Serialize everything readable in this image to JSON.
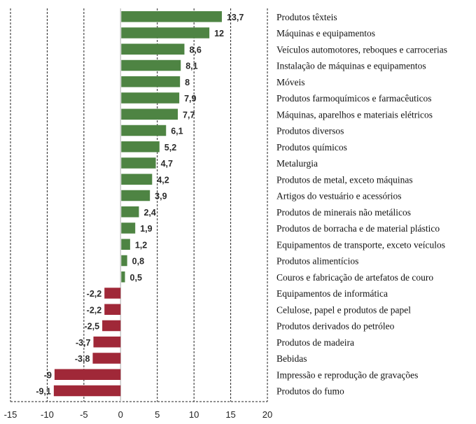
{
  "chart_data": {
    "type": "bar",
    "orientation": "horizontal",
    "title": "",
    "xlabel": "",
    "ylabel": "",
    "xlim": [
      -15,
      20
    ],
    "xticks": [
      -15,
      -10,
      -5,
      0,
      5,
      10,
      15,
      20
    ],
    "xtick_labels": [
      "-15",
      "-10",
      "-5",
      "0",
      "5",
      "10",
      "15",
      "20"
    ],
    "grid": "vertical dashed",
    "legend": "none",
    "category_label_position": "right",
    "colors": {
      "positive": "#4e8443",
      "negative": "#a02838"
    },
    "categories": [
      "Produtos têxteis",
      "Máquinas e equipamentos",
      "Veículos automotores, reboques e carrocerias",
      "Instalação de máquinas e equipamentos",
      "Móveis",
      "Produtos farmoquímicos e farmacêuticos",
      "Máquinas, aparelhos e materiais elétricos",
      "Produtos diversos",
      "Produtos químicos",
      "Metalurgia",
      "Produtos de metal, exceto máquinas",
      "Artigos do vestuário e acessórios",
      "Produtos de minerais não metálicos",
      "Produtos de borracha e de material plástico",
      "Equipamentos de transporte, exceto veículos",
      "Produtos alimentícios",
      "Couros e fabricação de artefatos de couro",
      "Equipamentos de informática",
      "Celulose, papel e produtos de papel",
      "Produtos derivados do petróleo",
      "Produtos de madeira",
      "Bebidas",
      "Impressão e reprodução de gravações",
      "Produtos do fumo"
    ],
    "values": [
      13.7,
      12,
      8.6,
      8.1,
      8,
      7.9,
      7.7,
      6.1,
      5.2,
      4.7,
      4.2,
      3.9,
      2.4,
      1.9,
      1.2,
      0.8,
      0.5,
      -2.2,
      -2.2,
      -2.5,
      -3.7,
      -3.8,
      -9,
      -9.1
    ],
    "value_labels": [
      "13,7",
      "12",
      "8,6",
      "8,1",
      "8",
      "7,9",
      "7,7",
      "6,1",
      "5,2",
      "4,7",
      "4,2",
      "3,9",
      "2,4",
      "1,9",
      "1,2",
      "0,8",
      "0,5",
      "-2,2",
      "-2,2",
      "-2,5",
      "-3,7",
      "-3,8",
      "-9",
      "-9,1"
    ]
  }
}
